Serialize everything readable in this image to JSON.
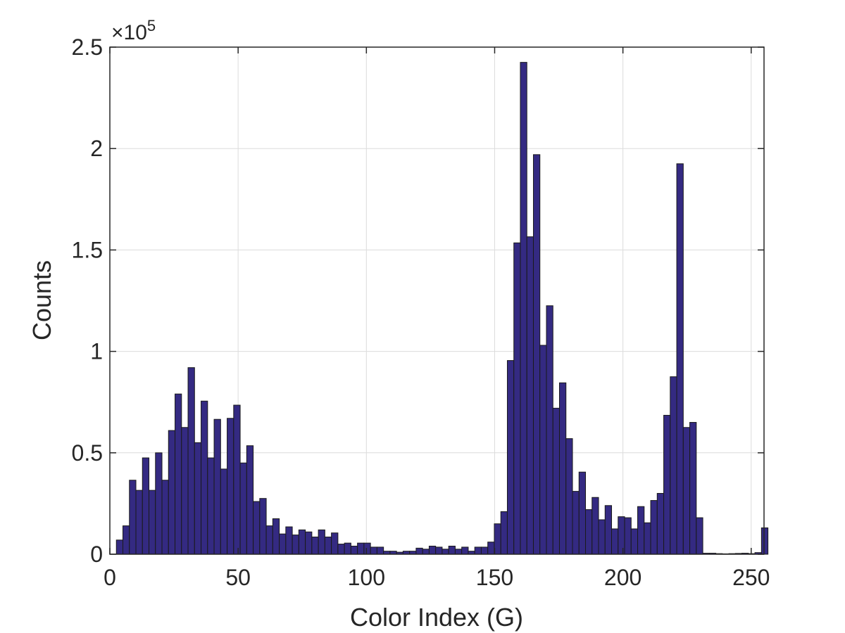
{
  "chart_data": {
    "type": "bar",
    "title": "",
    "xlabel": "Color Index (G)",
    "ylabel": "Counts",
    "y_exponent_label": "×10",
    "y_exponent": "5",
    "xlim": [
      0,
      255
    ],
    "ylim": [
      0,
      2.5
    ],
    "x_ticks": [
      0,
      50,
      100,
      150,
      200,
      250
    ],
    "x_tick_labels": [
      "0",
      "50",
      "100",
      "150",
      "200",
      "250"
    ],
    "y_ticks": [
      0,
      0.5,
      1,
      1.5,
      2,
      2.5
    ],
    "y_tick_labels": [
      "0",
      "0.5",
      "1",
      "1.5",
      "2",
      "2.5"
    ],
    "grid": true,
    "bar_color": "#342a82",
    "bin_width": 2.54,
    "bin_start": 2.54,
    "values": [
      0.07,
      0.14,
      0.365,
      0.315,
      0.475,
      0.315,
      0.5,
      0.365,
      0.61,
      0.79,
      0.625,
      0.92,
      0.55,
      0.755,
      0.475,
      0.665,
      0.42,
      0.67,
      0.735,
      0.45,
      0.535,
      0.26,
      0.275,
      0.14,
      0.175,
      0.1,
      0.135,
      0.095,
      0.12,
      0.11,
      0.085,
      0.12,
      0.085,
      0.105,
      0.05,
      0.055,
      0.04,
      0.055,
      0.055,
      0.035,
      0.035,
      0.015,
      0.015,
      0.01,
      0.015,
      0.015,
      0.03,
      0.025,
      0.04,
      0.035,
      0.025,
      0.04,
      0.025,
      0.035,
      0.015,
      0.035,
      0.035,
      0.06,
      0.15,
      0.21,
      0.955,
      1.535,
      2.425,
      1.565,
      1.97,
      1.03,
      1.225,
      0.72,
      0.845,
      0.57,
      0.31,
      0.405,
      0.22,
      0.28,
      0.17,
      0.24,
      0.125,
      0.185,
      0.18,
      0.125,
      0.235,
      0.155,
      0.265,
      0.3,
      0.685,
      0.875,
      1.925,
      0.625,
      0.65,
      0.18,
      0.005,
      0.005,
      0.003,
      0.002,
      0.003,
      0.004,
      0.005,
      0.003,
      0.008,
      0.13
    ]
  }
}
